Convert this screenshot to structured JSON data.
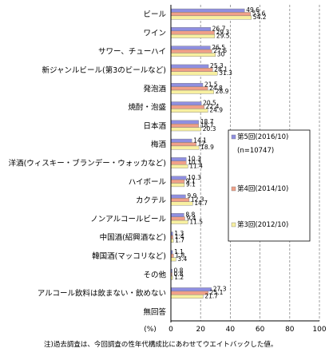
{
  "chart_data": {
    "type": "bar",
    "orientation": "horizontal",
    "categories": [
      "ビール",
      "ワイン",
      "サワー、チューハイ",
      "新ジャンルビール(第3のビールなど)",
      "発泡酒",
      "焼酎・泡盛",
      "日本酒",
      "梅酒",
      "洋酒(ウィスキー・ブランデー・ウォッカなど)",
      "ハイボール",
      "カクテル",
      "ノンアルコールビール",
      "中国酒(紹興酒など)",
      "韓国酒(マッコリなど)",
      "その他",
      "アルコール飲料は飲まない・飲めない",
      "無回答"
    ],
    "series": [
      {
        "name": "第5回(2016/10)",
        "values": [
          49.6,
          26.7,
          26.5,
          25.3,
          21.5,
          20.5,
          18.7,
          14.1,
          10.3,
          10.3,
          9.9,
          8.8,
          1.3,
          1.1,
          0.8,
          27.3,
          null
        ]
      },
      {
        "name": "第4回(2014/10)",
        "values": [
          53.6,
          29.3,
          27.6,
          28.1,
          24.8,
          22.4,
          18.7,
          17.0,
          10.3,
          9.1,
          12.3,
          9.4,
          1.4,
          1.8,
          0.8,
          25.1,
          null
        ]
      },
      {
        "name": "第3回(2012/10)",
        "values": [
          54.2,
          29.5,
          30.0,
          31.3,
          28.9,
          24.9,
          20.3,
          18.9,
          11.4,
          9.1,
          14.7,
          11.5,
          1.7,
          3.4,
          1.2,
          21.7,
          null
        ]
      }
    ],
    "series_note": "(n=10747)",
    "colors": [
      "#8f8fe0",
      "#f0a088",
      "#f8f0a0"
    ],
    "xlabel": "(%)",
    "xlim": [
      0,
      100
    ],
    "xticks": [
      0,
      20,
      40,
      60,
      80,
      100
    ],
    "legend_position": "right"
  },
  "footnote": "注)過去調査は、今回調査の性年代構成比にあわせてウエイトバックした値。"
}
